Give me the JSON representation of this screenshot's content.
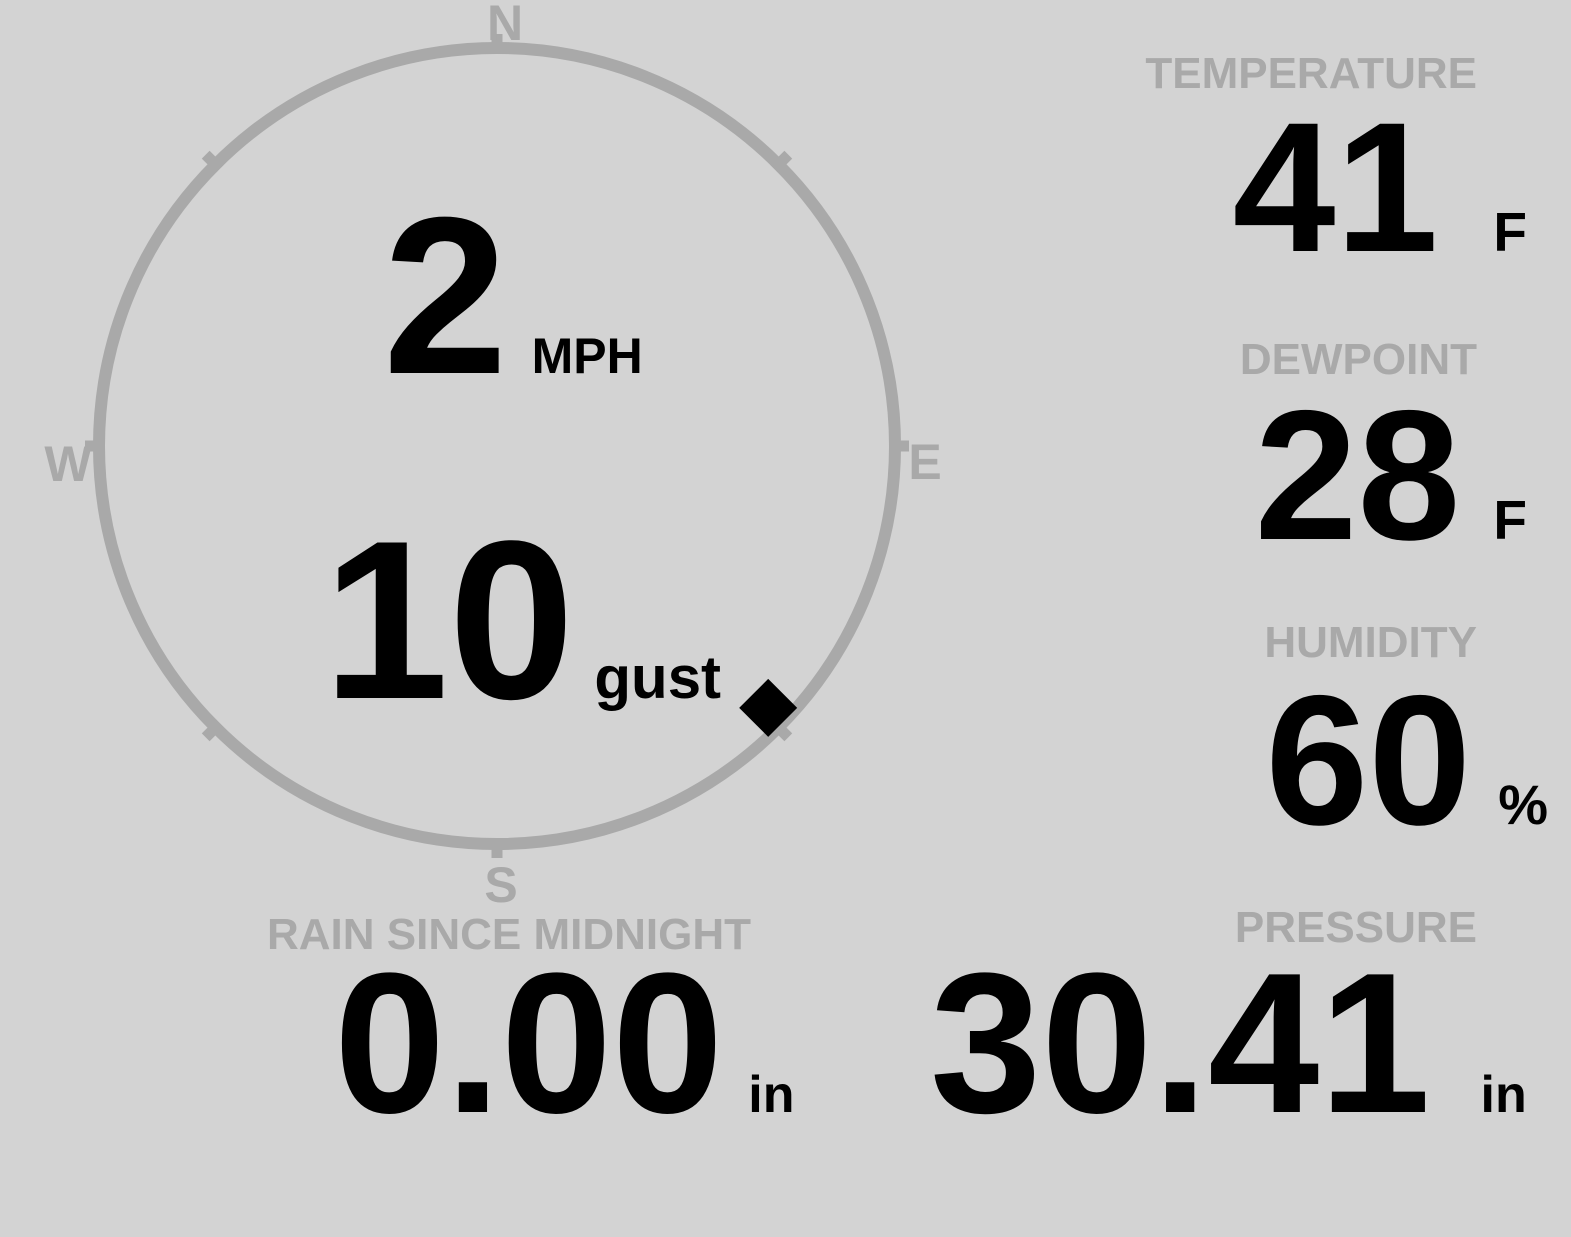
{
  "colors": {
    "background": "#d3d3d3",
    "muted_gray": "#a9a9a9",
    "value_black": "#000000"
  },
  "compass": {
    "labels": {
      "north": "N",
      "east": "E",
      "south": "S",
      "west": "W"
    },
    "wind_direction_deg": 134
  },
  "wind": {
    "speed_value": "2",
    "speed_unit": "MPH",
    "gust_value": "10",
    "gust_label": "gust"
  },
  "metrics": {
    "temperature": {
      "label": "TEMPERATURE",
      "value": "41",
      "unit": "F"
    },
    "dewpoint": {
      "label": "DEWPOINT",
      "value": "28",
      "unit": "F"
    },
    "humidity": {
      "label": "HUMIDITY",
      "value": "60",
      "unit": "%"
    },
    "rain": {
      "label": "RAIN SINCE MIDNIGHT",
      "value": "0.00",
      "unit": "in"
    },
    "pressure": {
      "label": "PRESSURE",
      "value": "30.41",
      "unit": "in"
    }
  }
}
